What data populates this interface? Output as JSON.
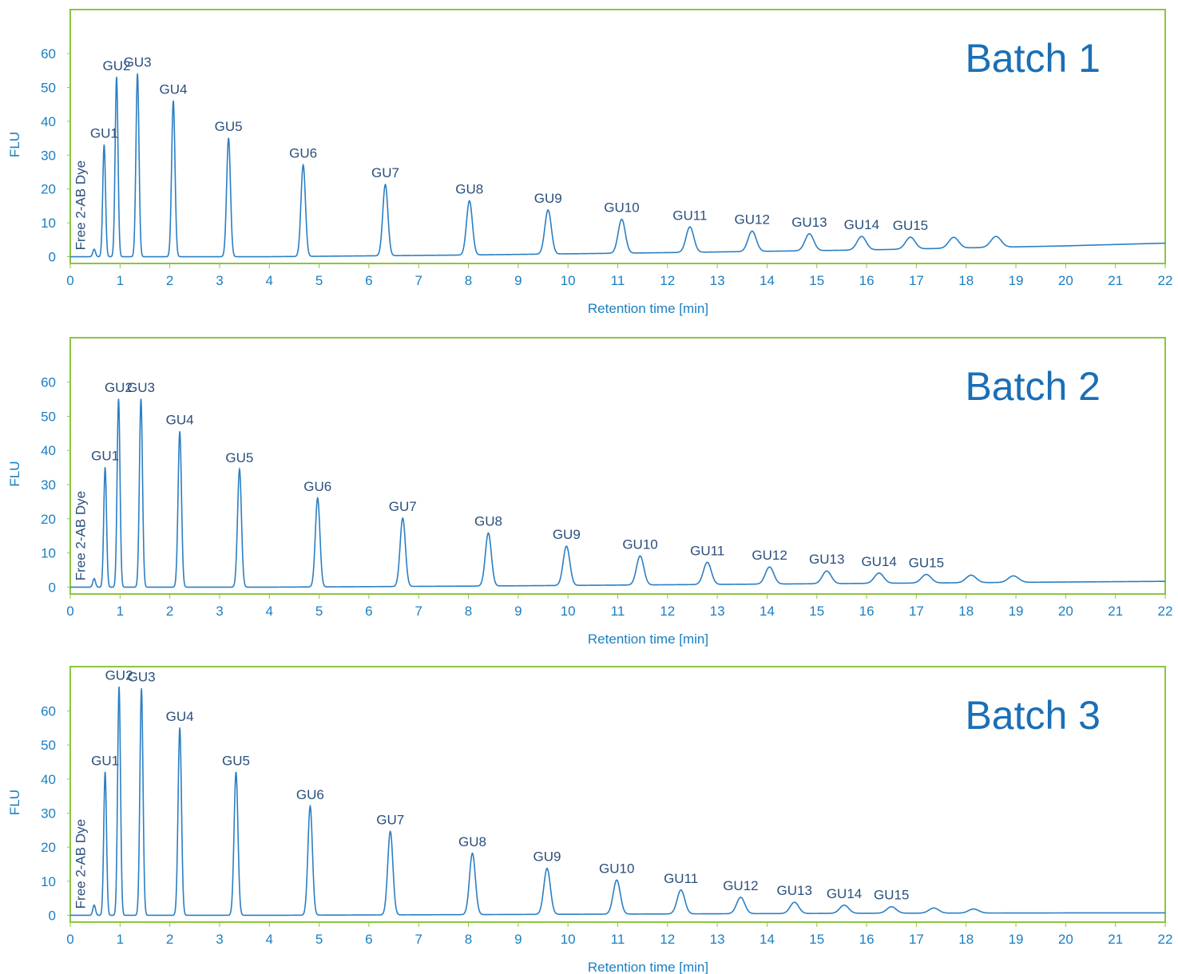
{
  "chart_data": [
    {
      "type": "line",
      "title": "Batch 1",
      "xlabel": "Retention time [min]",
      "ylabel": "FLU",
      "xlim": [
        0,
        22
      ],
      "ylim": [
        -2,
        73
      ],
      "xticks": [
        0,
        1,
        2,
        3,
        4,
        5,
        6,
        7,
        8,
        9,
        10,
        11,
        12,
        13,
        14,
        15,
        16,
        17,
        18,
        19,
        20,
        21,
        22
      ],
      "yticks": [
        0,
        10,
        20,
        30,
        40,
        50,
        60
      ],
      "grid": false,
      "dye_label": "Free 2-AB Dye",
      "baseline": [
        [
          0,
          0
        ],
        [
          4,
          0
        ],
        [
          8,
          0.5
        ],
        [
          12,
          1.2
        ],
        [
          16,
          2
        ],
        [
          20,
          3.2
        ],
        [
          22,
          4
        ]
      ],
      "peaks": [
        {
          "label": "",
          "x": 0.48,
          "y": 2.2
        },
        {
          "label": "GU1",
          "x": 0.68,
          "y": 33
        },
        {
          "label": "GU2",
          "x": 0.93,
          "y": 53
        },
        {
          "label": "GU3",
          "x": 1.35,
          "y": 54
        },
        {
          "label": "GU4",
          "x": 2.07,
          "y": 46
        },
        {
          "label": "GU5",
          "x": 3.18,
          "y": 35
        },
        {
          "label": "GU6",
          "x": 4.68,
          "y": 27
        },
        {
          "label": "GU7",
          "x": 6.33,
          "y": 21
        },
        {
          "label": "GU8",
          "x": 8.02,
          "y": 16
        },
        {
          "label": "GU9",
          "x": 9.6,
          "y": 13
        },
        {
          "label": "GU10",
          "x": 11.08,
          "y": 10
        },
        {
          "label": "GU11",
          "x": 12.45,
          "y": 7.5
        },
        {
          "label": "GU12",
          "x": 13.7,
          "y": 6
        },
        {
          "label": "GU13",
          "x": 14.85,
          "y": 5
        },
        {
          "label": "GU14",
          "x": 15.9,
          "y": 4
        },
        {
          "label": "GU15",
          "x": 16.88,
          "y": 3.5
        },
        {
          "label": "",
          "x": 17.75,
          "y": 3.2
        },
        {
          "label": "",
          "x": 18.6,
          "y": 3.2
        }
      ]
    },
    {
      "type": "line",
      "title": "Batch 2",
      "xlabel": "Retention time [min]",
      "ylabel": "FLU",
      "xlim": [
        0,
        22
      ],
      "ylim": [
        -2,
        73
      ],
      "xticks": [
        0,
        1,
        2,
        3,
        4,
        5,
        6,
        7,
        8,
        9,
        10,
        11,
        12,
        13,
        14,
        15,
        16,
        17,
        18,
        19,
        20,
        21,
        22
      ],
      "yticks": [
        0,
        10,
        20,
        30,
        40,
        50,
        60
      ],
      "grid": false,
      "dye_label": "Free 2-AB Dye",
      "baseline": [
        [
          0,
          0
        ],
        [
          4,
          0
        ],
        [
          8,
          0.3
        ],
        [
          12,
          0.7
        ],
        [
          16,
          1.1
        ],
        [
          20,
          1.5
        ],
        [
          22,
          1.7
        ]
      ],
      "peaks": [
        {
          "label": "",
          "x": 0.48,
          "y": 2.5
        },
        {
          "label": "GU1",
          "x": 0.7,
          "y": 35
        },
        {
          "label": "GU2",
          "x": 0.97,
          "y": 55
        },
        {
          "label": "GU3",
          "x": 1.42,
          "y": 55
        },
        {
          "label": "GU4",
          "x": 2.2,
          "y": 45.5
        },
        {
          "label": "GU5",
          "x": 3.4,
          "y": 34.5
        },
        {
          "label": "GU6",
          "x": 4.97,
          "y": 26
        },
        {
          "label": "GU7",
          "x": 6.68,
          "y": 20
        },
        {
          "label": "GU8",
          "x": 8.4,
          "y": 15.5
        },
        {
          "label": "GU9",
          "x": 9.97,
          "y": 11.5
        },
        {
          "label": "GU10",
          "x": 11.45,
          "y": 8.5
        },
        {
          "label": "GU11",
          "x": 12.8,
          "y": 6.5
        },
        {
          "label": "GU12",
          "x": 14.05,
          "y": 5
        },
        {
          "label": "GU13",
          "x": 15.2,
          "y": 3.7
        },
        {
          "label": "GU14",
          "x": 16.25,
          "y": 3
        },
        {
          "label": "GU15",
          "x": 17.2,
          "y": 2.5
        },
        {
          "label": "",
          "x": 18.1,
          "y": 2.2
        },
        {
          "label": "",
          "x": 18.95,
          "y": 1.9
        }
      ]
    },
    {
      "type": "line",
      "title": "Batch 3",
      "xlabel": "Retention time [min]",
      "ylabel": "FLU",
      "xlim": [
        0,
        22
      ],
      "ylim": [
        -2,
        73
      ],
      "xticks": [
        0,
        1,
        2,
        3,
        4,
        5,
        6,
        7,
        8,
        9,
        10,
        11,
        12,
        13,
        14,
        15,
        16,
        17,
        18,
        19,
        20,
        21,
        22
      ],
      "yticks": [
        0,
        10,
        20,
        30,
        40,
        50,
        60
      ],
      "grid": false,
      "dye_label": "Free 2-AB Dye",
      "baseline": [
        [
          0,
          0
        ],
        [
          4,
          0
        ],
        [
          8,
          0.2
        ],
        [
          12,
          0.4
        ],
        [
          16,
          0.6
        ],
        [
          20,
          0.7
        ],
        [
          22,
          0.7
        ]
      ],
      "peaks": [
        {
          "label": "",
          "x": 0.48,
          "y": 3
        },
        {
          "label": "GU1",
          "x": 0.7,
          "y": 42
        },
        {
          "label": "GU2",
          "x": 0.98,
          "y": 67
        },
        {
          "label": "GU3",
          "x": 1.43,
          "y": 66.5
        },
        {
          "label": "GU4",
          "x": 2.2,
          "y": 55
        },
        {
          "label": "GU5",
          "x": 3.33,
          "y": 42
        },
        {
          "label": "GU6",
          "x": 4.82,
          "y": 32
        },
        {
          "label": "GU7",
          "x": 6.43,
          "y": 24.5
        },
        {
          "label": "GU8",
          "x": 8.08,
          "y": 18
        },
        {
          "label": "GU9",
          "x": 9.58,
          "y": 13.5
        },
        {
          "label": "GU10",
          "x": 10.98,
          "y": 10
        },
        {
          "label": "GU11",
          "x": 12.27,
          "y": 7
        },
        {
          "label": "GU12",
          "x": 13.47,
          "y": 4.8
        },
        {
          "label": "GU13",
          "x": 14.55,
          "y": 3.3
        },
        {
          "label": "GU14",
          "x": 15.55,
          "y": 2.4
        },
        {
          "label": "GU15",
          "x": 16.5,
          "y": 1.9
        },
        {
          "label": "",
          "x": 17.35,
          "y": 1.5
        },
        {
          "label": "",
          "x": 18.15,
          "y": 1.2
        }
      ]
    }
  ],
  "colors": {
    "frame": "#8cc63f",
    "trace": "#2b7fc4",
    "axis_text": "#1a7fc1",
    "label_text": "#2a4f7c",
    "batch_title": "#1a6fb6"
  }
}
